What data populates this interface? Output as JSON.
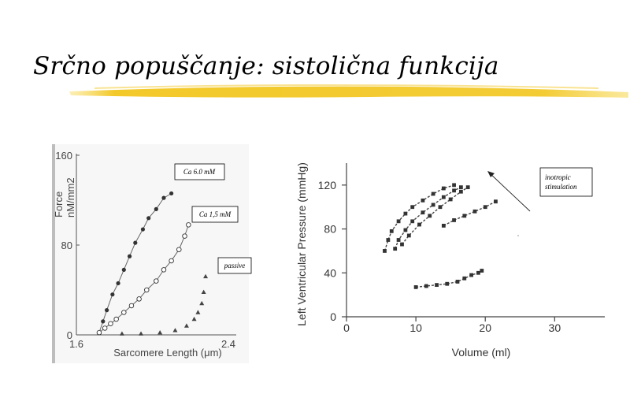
{
  "slide": {
    "title": "Srčno popuščanje: sistolična funkcija",
    "underline_color": "#f2c61f"
  },
  "chart_data": [
    {
      "type": "scatter",
      "title": "",
      "xlabel": "Sarcomere Length (μm)",
      "ylabel_line1": "Force",
      "ylabel_line2": "nM/mm2",
      "xlim": [
        1.6,
        2.4
      ],
      "ylim": [
        0,
        160
      ],
      "x_ticks": [
        "1.6",
        "2.4"
      ],
      "y_ticks": [
        "0",
        "80",
        "160"
      ],
      "grid": false,
      "annotations": [
        "Ca 6.0 mM",
        "Ca 1,5 mM",
        "passive"
      ],
      "series": [
        {
          "name": "Ca 6.0 mM",
          "marker": "filled-circle",
          "points": [
            [
              1.72,
              2
            ],
            [
              1.74,
              12
            ],
            [
              1.76,
              22
            ],
            [
              1.79,
              36
            ],
            [
              1.82,
              46
            ],
            [
              1.85,
              58
            ],
            [
              1.88,
              70
            ],
            [
              1.91,
              82
            ],
            [
              1.95,
              94
            ],
            [
              1.98,
              104
            ],
            [
              2.02,
              112
            ],
            [
              2.06,
              122
            ],
            [
              2.1,
              126
            ]
          ]
        },
        {
          "name": "Ca 1,5 mM",
          "marker": "open-circle",
          "points": [
            [
              1.72,
              2
            ],
            [
              1.75,
              6
            ],
            [
              1.78,
              10
            ],
            [
              1.81,
              14
            ],
            [
              1.85,
              20
            ],
            [
              1.89,
              26
            ],
            [
              1.93,
              32
            ],
            [
              1.97,
              40
            ],
            [
              2.02,
              48
            ],
            [
              2.06,
              58
            ],
            [
              2.1,
              66
            ],
            [
              2.14,
              76
            ],
            [
              2.17,
              88
            ],
            [
              2.19,
              98
            ]
          ]
        },
        {
          "name": "passive",
          "marker": "filled-triangle",
          "points": [
            [
              1.84,
              1
            ],
            [
              1.94,
              1
            ],
            [
              2.04,
              2
            ],
            [
              2.12,
              4
            ],
            [
              2.18,
              8
            ],
            [
              2.22,
              14
            ],
            [
              2.24,
              20
            ],
            [
              2.26,
              28
            ],
            [
              2.27,
              38
            ],
            [
              2.28,
              52
            ]
          ]
        }
      ]
    },
    {
      "type": "scatter",
      "title": "",
      "xlabel": "Volume (ml)",
      "ylabel": "Left Ventricular Pressure (mmHg)",
      "xlim": [
        0,
        37
      ],
      "ylim": [
        0,
        140
      ],
      "x_ticks": [
        "0",
        "10",
        "20",
        "30"
      ],
      "y_ticks": [
        "0",
        "40",
        "80",
        "120"
      ],
      "grid": false,
      "annotations": [
        "inotropic stimulation"
      ],
      "series": [
        {
          "name": "",
          "marker": "filled-square",
          "points": [
            [
              5.5,
              60
            ],
            [
              6,
              70
            ],
            [
              6.5,
              78
            ],
            [
              7.5,
              87
            ],
            [
              8.5,
              94
            ],
            [
              9.5,
              100
            ],
            [
              11,
              106
            ],
            [
              12.5,
              112
            ],
            [
              14,
              117
            ],
            [
              15.5,
              120
            ]
          ]
        },
        {
          "name": "",
          "marker": "filled-square",
          "points": [
            [
              7,
              62
            ],
            [
              7.5,
              70
            ],
            [
              8.5,
              79
            ],
            [
              9.5,
              87
            ],
            [
              11,
              95
            ],
            [
              12.5,
              102
            ],
            [
              14,
              109
            ],
            [
              15.5,
              115
            ],
            [
              16.5,
              118
            ]
          ]
        },
        {
          "name": "",
          "marker": "filled-square",
          "points": [
            [
              8,
              66
            ],
            [
              9,
              74
            ],
            [
              10.5,
              84
            ],
            [
              12,
              92
            ],
            [
              13.5,
              100
            ],
            [
              15,
              107
            ],
            [
              16.5,
              114
            ],
            [
              17.5,
              118
            ]
          ]
        },
        {
          "name": "",
          "marker": "filled-square",
          "points": [
            [
              14,
              83
            ],
            [
              15.5,
              88
            ],
            [
              17,
              92
            ],
            [
              18.5,
              96
            ],
            [
              20,
              100
            ],
            [
              21.5,
              105
            ]
          ]
        },
        {
          "name": "",
          "marker": "filled-square",
          "points": [
            [
              10,
              27
            ],
            [
              11.5,
              28
            ],
            [
              13,
              29
            ],
            [
              14.5,
              30
            ],
            [
              16,
              32
            ],
            [
              17,
              35
            ],
            [
              18,
              38
            ],
            [
              19,
              40
            ],
            [
              19.5,
              42
            ]
          ]
        }
      ]
    }
  ]
}
